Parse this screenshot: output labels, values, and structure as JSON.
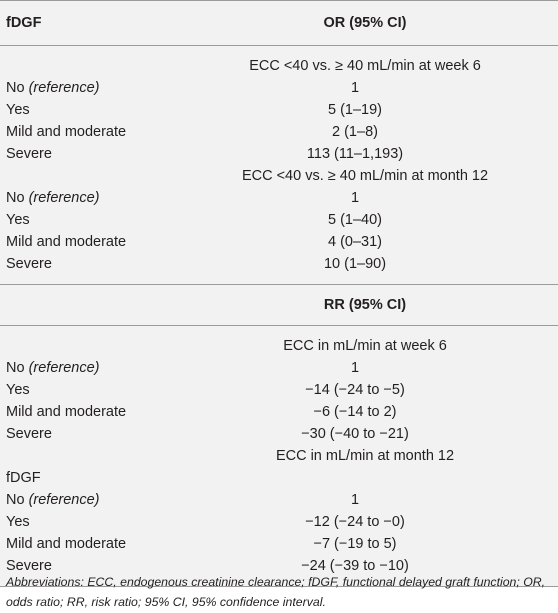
{
  "header": {
    "col1": "fDGF",
    "col2": "OR (95% CI)"
  },
  "section_or": {
    "week6_title": "ECC <40 vs. ≥ 40 mL/min at week 6",
    "week6_rows": [
      {
        "label": "No ",
        "label_italic": "(reference)",
        "value": "1"
      },
      {
        "label": "Yes",
        "label_italic": "",
        "value": "5 (1–19)"
      },
      {
        "label": "Mild and moderate",
        "label_italic": "",
        "value": "2 (1–8)"
      },
      {
        "label": "Severe",
        "label_italic": "",
        "value": "113 (11–1,193)"
      }
    ],
    "month12_title": "ECC <40 vs. ≥ 40 mL/min at month 12",
    "month12_rows": [
      {
        "label": "No ",
        "label_italic": "(reference)",
        "value": "1"
      },
      {
        "label": "Yes",
        "label_italic": "",
        "value": "5 (1–40)"
      },
      {
        "label": "Mild and moderate",
        "label_italic": "",
        "value": "4 (0–31)"
      },
      {
        "label": "Severe",
        "label_italic": "",
        "value": "10 (1–90)"
      }
    ]
  },
  "header2": {
    "col2": "RR (95% CI)"
  },
  "section_rr": {
    "week6_title": "ECC in mL/min at week 6",
    "week6_rows": [
      {
        "label": "No ",
        "label_italic": "(reference)",
        "value": "1"
      },
      {
        "label": "Yes",
        "label_italic": "",
        "value": "−14 (−24 to −5)"
      },
      {
        "label": "Mild and moderate",
        "label_italic": "",
        "value": "−6 (−14 to 2)"
      },
      {
        "label": "Severe",
        "label_italic": "",
        "value": "−30 (−40 to −21)"
      }
    ],
    "month12_title": "ECC in mL/min at month 12",
    "month12_group": "fDGF",
    "month12_rows": [
      {
        "label": "No ",
        "label_italic": "(reference)",
        "value": "1"
      },
      {
        "label": "Yes",
        "label_italic": "",
        "value": "−12 (−24 to −0)"
      },
      {
        "label": "Mild and moderate",
        "label_italic": "",
        "value": "−7 (−19 to 5)"
      },
      {
        "label": "Severe",
        "label_italic": "",
        "value": "−24 (−39 to −10)"
      }
    ]
  },
  "footnote": "Abbreviations: ECC, endogenous creatinine clearance; fDGF, functional delayed graft function; OR, odds ratio; RR, risk ratio; 95% CI, 95% confidence interval."
}
